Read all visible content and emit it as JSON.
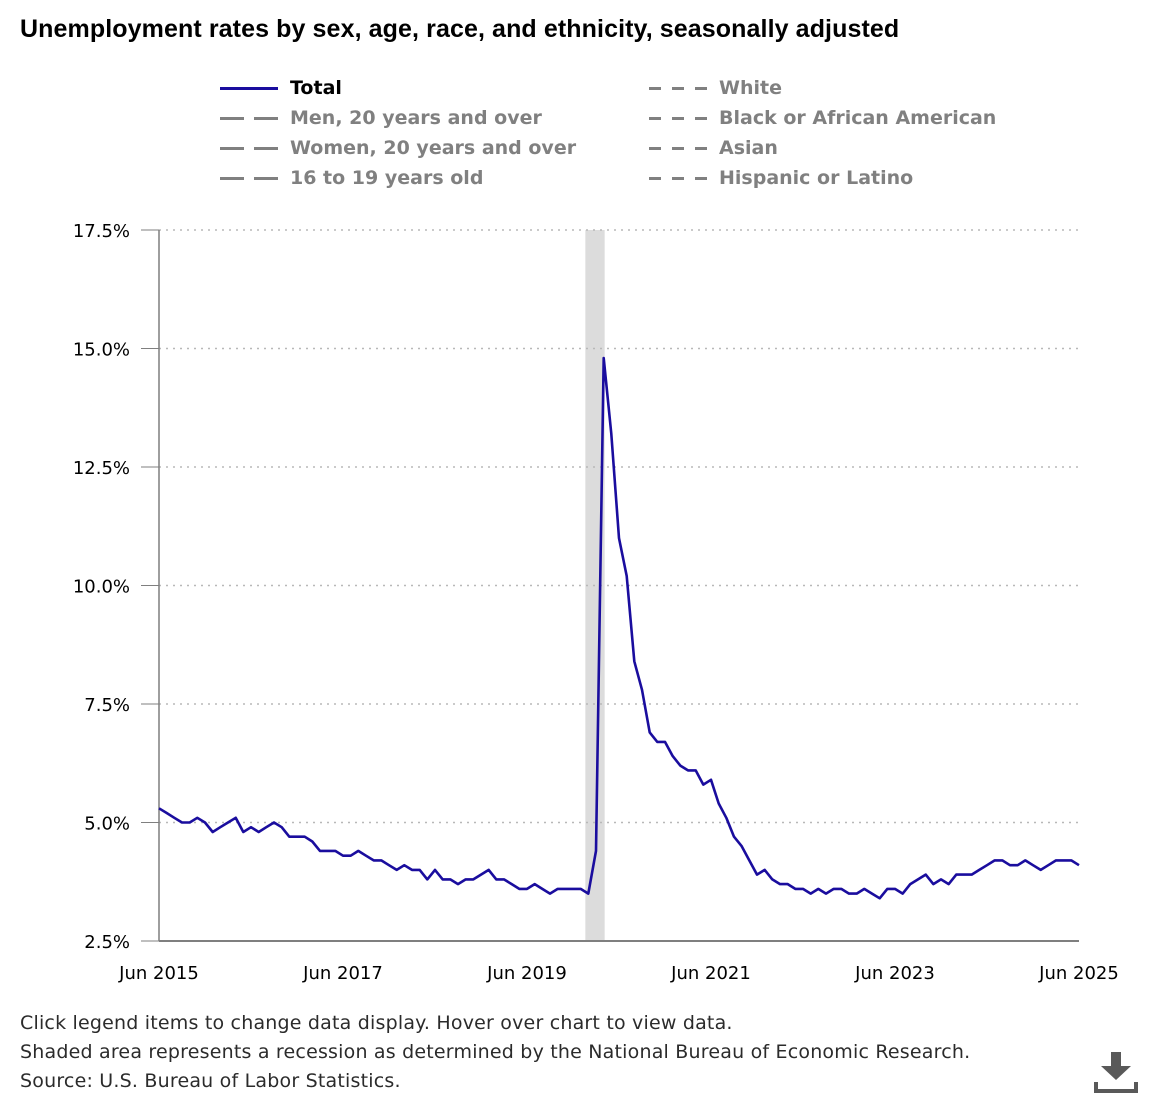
{
  "title": "Unemployment rates by sex, age, race, and ethnicity, seasonally adjusted",
  "legend": [
    {
      "label": "Total",
      "active": true,
      "style": "solid",
      "color": "#1a0d9e"
    },
    {
      "label": "Men, 20 years and over",
      "active": false,
      "style": "longdash",
      "color": "#808080"
    },
    {
      "label": "Women, 20 years and over",
      "active": false,
      "style": "longdash",
      "color": "#808080"
    },
    {
      "label": "16 to 19 years old",
      "active": false,
      "style": "longdash",
      "color": "#808080"
    },
    {
      "label": "White",
      "active": false,
      "style": "dash",
      "color": "#808080"
    },
    {
      "label": "Black or African American",
      "active": false,
      "style": "dash",
      "color": "#808080"
    },
    {
      "label": "Asian",
      "active": false,
      "style": "dash",
      "color": "#808080"
    },
    {
      "label": "Hispanic or Latino",
      "active": false,
      "style": "dash",
      "color": "#808080"
    }
  ],
  "footer": {
    "line1": "Click legend items to change data display. Hover over chart to view data.",
    "line2": "Shaded area represents a recession as determined by the National Bureau of Economic Research.",
    "line3": "Source: U.S. Bureau of Labor Statistics."
  },
  "download_icon": "download-icon",
  "colors": {
    "total_series": "#1a0d9e",
    "recession_shade": "#dcdcdc",
    "grid": "#b8b8b8",
    "axis": "#7f7f7f"
  },
  "chart_data": {
    "type": "line",
    "x_start": "2015-06",
    "x_end": "2025-06",
    "x_frequency": "monthly",
    "ylim": [
      2.5,
      17.5
    ],
    "y_ticks": [
      2.5,
      5.0,
      7.5,
      10.0,
      12.5,
      15.0,
      17.5
    ],
    "y_tick_labels": [
      "2.5%",
      "5.0%",
      "7.5%",
      "10.0%",
      "12.5%",
      "15.0%",
      "17.5%"
    ],
    "x_tick_labels": [
      "Jun 2015",
      "Jun 2017",
      "Jun 2019",
      "Jun 2021",
      "Jun 2023",
      "Jun 2025"
    ],
    "x_tick_dates": [
      "2015-06",
      "2017-06",
      "2019-06",
      "2021-06",
      "2023-06",
      "2025-06"
    ],
    "grid": "horizontal-dotted",
    "recession": {
      "start": "2020-02",
      "end": "2020-04"
    },
    "series": [
      {
        "name": "Total",
        "values": [
          5.3,
          5.2,
          5.1,
          5.0,
          5.0,
          5.1,
          5.0,
          4.8,
          4.9,
          5.0,
          5.1,
          4.8,
          4.9,
          4.8,
          4.9,
          5.0,
          4.9,
          4.7,
          4.7,
          4.7,
          4.6,
          4.4,
          4.4,
          4.4,
          4.3,
          4.3,
          4.4,
          4.3,
          4.2,
          4.2,
          4.1,
          4.0,
          4.1,
          4.0,
          4.0,
          3.8,
          4.0,
          3.8,
          3.8,
          3.7,
          3.8,
          3.8,
          3.9,
          4.0,
          3.8,
          3.8,
          3.7,
          3.6,
          3.6,
          3.7,
          3.6,
          3.5,
          3.6,
          3.6,
          3.6,
          3.6,
          3.5,
          4.4,
          14.8,
          13.2,
          11.0,
          10.2,
          8.4,
          7.8,
          6.9,
          6.7,
          6.7,
          6.4,
          6.2,
          6.1,
          6.1,
          5.8,
          5.9,
          5.4,
          5.1,
          4.7,
          4.5,
          4.2,
          3.9,
          4.0,
          3.8,
          3.7,
          3.7,
          3.6,
          3.6,
          3.5,
          3.6,
          3.5,
          3.6,
          3.6,
          3.5,
          3.5,
          3.6,
          3.5,
          3.4,
          3.6,
          3.6,
          3.5,
          3.7,
          3.8,
          3.9,
          3.7,
          3.8,
          3.7,
          3.9,
          3.9,
          3.9,
          4.0,
          4.1,
          4.2,
          4.2,
          4.1,
          4.1,
          4.2,
          4.1,
          4.0,
          4.1,
          4.2,
          4.2,
          4.2,
          4.1
        ]
      }
    ]
  }
}
